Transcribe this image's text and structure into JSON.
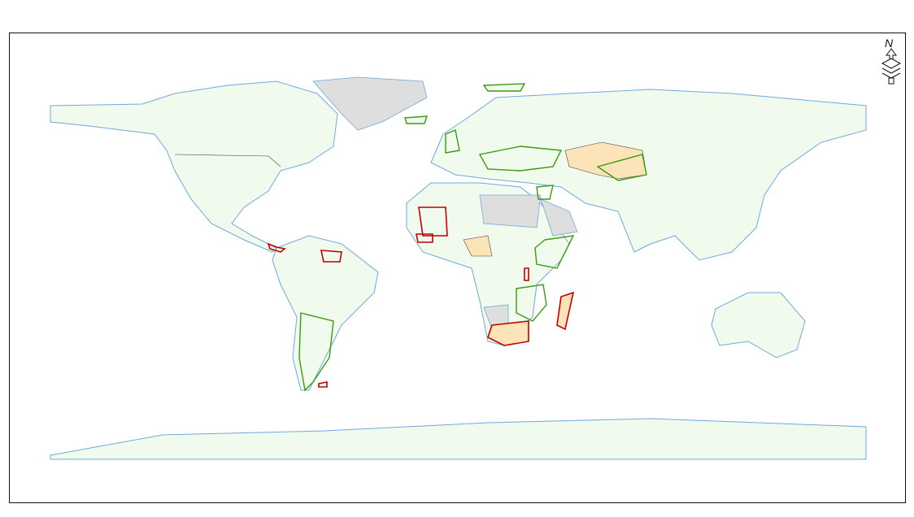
{
  "map": {
    "north_arrow_label": "N",
    "colors": {
      "land": "#f0fbee",
      "coastline": "#6fa8dc",
      "no_data": "#dedede",
      "highlight_fill": "#fde3b8",
      "red_outline": "#c00000",
      "green_outline": "#3a9a12",
      "country_border": "#444444"
    },
    "icons": [
      "north-arrow-icon"
    ]
  }
}
